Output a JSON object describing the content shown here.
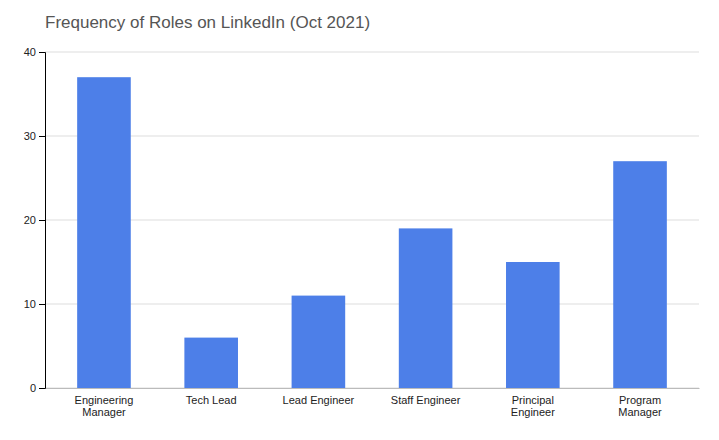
{
  "chart_data": {
    "type": "bar",
    "title": "Frequency of Roles on LinkedIn (Oct 2021)",
    "categories": [
      "Engineering\nManager",
      "Tech Lead",
      "Lead Engineer",
      "Staff Engineer",
      "Principal\nEngineer",
      "Program\nManager"
    ],
    "values": [
      37,
      6,
      11,
      19,
      15,
      27
    ],
    "color": "#4d7fe8",
    "ylim": [
      0,
      40
    ],
    "yticks": [
      0,
      10,
      20,
      30,
      40
    ],
    "grid": true
  }
}
